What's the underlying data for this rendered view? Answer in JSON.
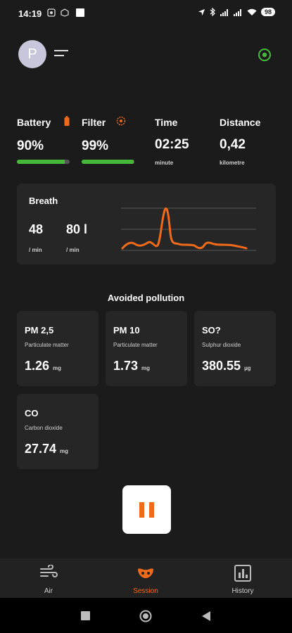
{
  "status_bar": {
    "time": "14:19",
    "battery": "98"
  },
  "header": {
    "avatar_initial": "P"
  },
  "metrics": {
    "battery": {
      "label": "Battery",
      "value": "90%",
      "level": 0.9
    },
    "filter": {
      "label": "Filter",
      "value": "99%",
      "level": 0.99
    },
    "time": {
      "label": "Time",
      "value": "02:25",
      "unit": "minute"
    },
    "distance": {
      "label": "Distance",
      "value": "0,42",
      "unit": "kilometre"
    }
  },
  "breath": {
    "title": "Breath",
    "rate": {
      "value": "48",
      "unit": "/ min"
    },
    "volume": {
      "value": "80 l",
      "unit": "/ min"
    }
  },
  "pollution": {
    "title": "Avoided pollution",
    "items": [
      {
        "name": "PM 2,5",
        "desc": "Particulate matter",
        "value": "1.26",
        "unit": "mg"
      },
      {
        "name": "PM 10",
        "desc": "Particulate matter",
        "value": "1.73",
        "unit": "mg"
      },
      {
        "name": "SO?",
        "desc": "Sulphur dioxide",
        "value": "380.55",
        "unit": "µg"
      },
      {
        "name": "CO",
        "desc": "Carbon dioxide",
        "value": "27.74",
        "unit": "mg"
      }
    ]
  },
  "nav": {
    "air": "Air",
    "session": "Session",
    "history": "History"
  },
  "colors": {
    "accent": "#f06a1a",
    "ok": "#46b93a",
    "bg": "#1b1b1b",
    "card": "#262626"
  },
  "icons": [
    "bell-mute-icon",
    "location-icon",
    "bluetooth-icon",
    "signal-icon",
    "wifi-icon",
    "menu-icon",
    "target-icon",
    "battery-warning-icon",
    "filter-gear-icon",
    "pause-icon",
    "wind-icon",
    "mask-icon",
    "history-chart-icon"
  ]
}
